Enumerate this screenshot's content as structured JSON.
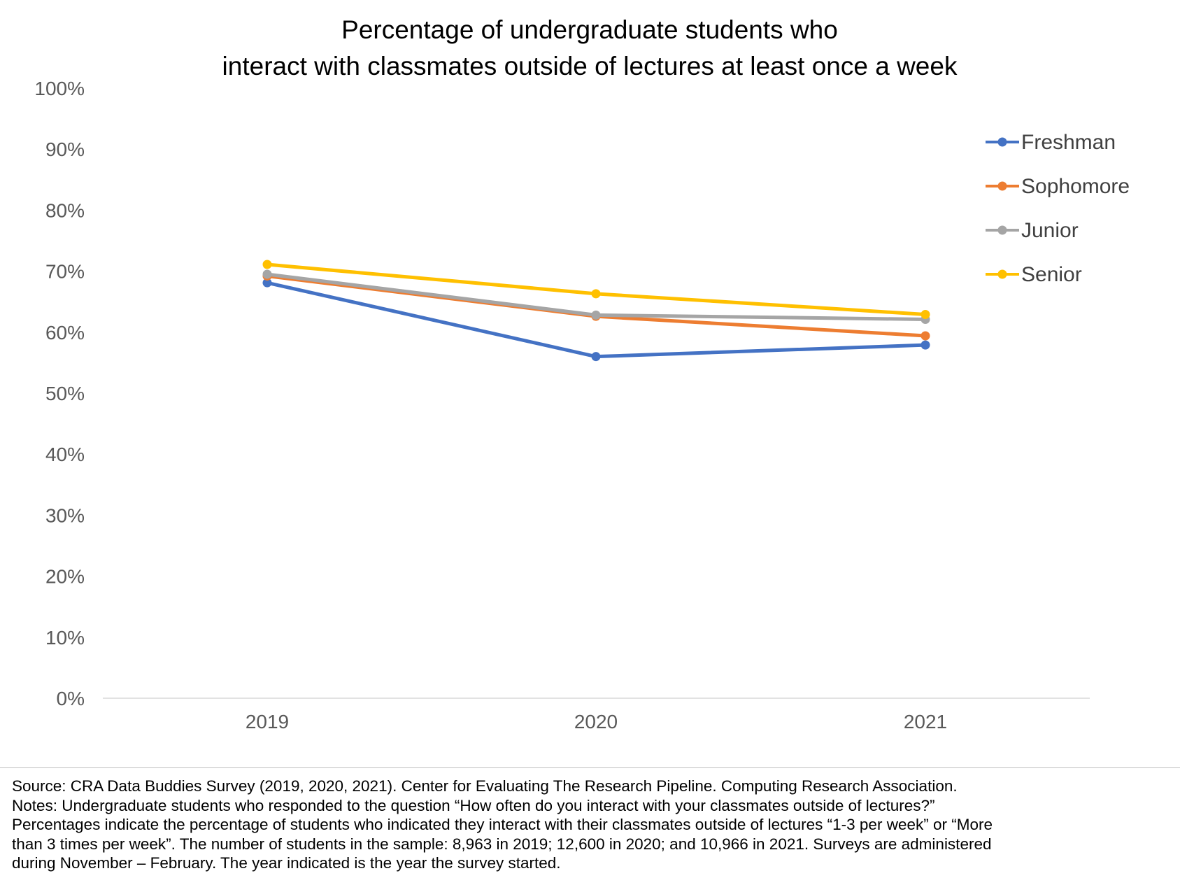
{
  "chart_data": {
    "type": "line",
    "title": [
      "Percentage of undergraduate students who",
      "interact with classmates outside of lectures at least once a week"
    ],
    "xlabel": "",
    "ylabel": "",
    "categories": [
      "2019",
      "2020",
      "2021"
    ],
    "ylim": [
      0,
      100
    ],
    "y_ticks": [
      "0%",
      "10%",
      "20%",
      "30%",
      "40%",
      "50%",
      "60%",
      "70%",
      "80%",
      "90%",
      "100%"
    ],
    "y_tick_values": [
      0,
      10,
      20,
      30,
      40,
      50,
      60,
      70,
      80,
      90,
      100
    ],
    "grid": false,
    "legend_position": "right",
    "series": [
      {
        "name": "Freshman",
        "color": "#4472C4",
        "values": [
          68.1,
          56.0,
          57.9
        ]
      },
      {
        "name": "Sophomore",
        "color": "#ED7D31",
        "values": [
          69.2,
          62.6,
          59.4
        ]
      },
      {
        "name": "Junior",
        "color": "#A5A5A5",
        "values": [
          69.5,
          62.8,
          62.1
        ]
      },
      {
        "name": "Senior",
        "color": "#FFC000",
        "values": [
          71.1,
          66.3,
          62.9
        ]
      }
    ]
  },
  "footer": {
    "lines": [
      "Source: CRA Data Buddies Survey (2019, 2020, 2021). Center for Evaluating The Research Pipeline. Computing Research Association.",
      "Notes: Undergraduate students who responded to the question “How often do you interact with your classmates outside of lectures?”",
      "Percentages indicate the percentage of students who indicated they interact with their classmates outside of lectures “1-3 per week” or “More",
      "than 3 times per week”. The number of students in the sample: 8,963 in 2019; 12,600 in 2020; and 10,966 in 2021. Surveys are administered",
      "during November – February. The year indicated is the year the survey started."
    ]
  }
}
